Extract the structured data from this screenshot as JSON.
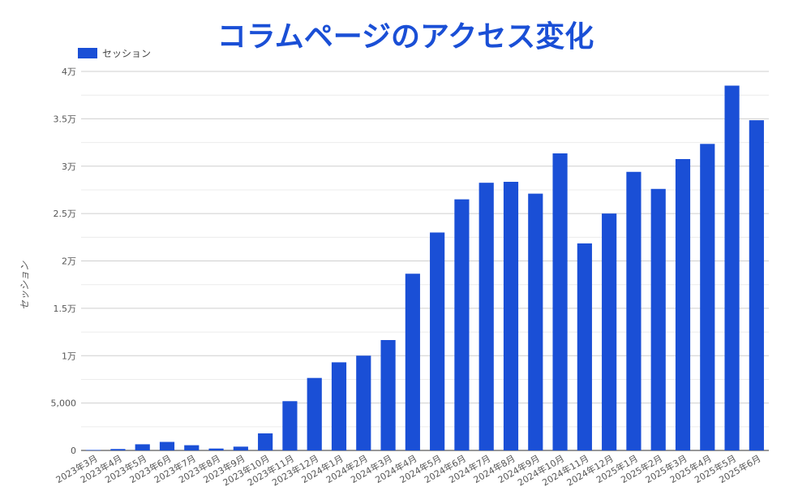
{
  "chart_data": {
    "type": "bar",
    "title": "コラムページのアクセス変化",
    "ylabel": "セッション",
    "xlabel": "",
    "legend": "top-left",
    "grid": true,
    "color": "#1a4fd6",
    "ylim": [
      0,
      40000
    ],
    "y_ticks": [
      0,
      5000,
      10000,
      15000,
      20000,
      25000,
      30000,
      35000,
      40000
    ],
    "y_tick_labels": [
      "0",
      "5,000",
      "1万",
      "1.5万",
      "2万",
      "2.5万",
      "3万",
      "3.5万",
      "4万"
    ],
    "categories": [
      "2023年3月",
      "2023年4月",
      "2023年5月",
      "2023年6月",
      "2023年7月",
      "2023年8月",
      "2023年9月",
      "2023年10月",
      "2023年11月",
      "2023年12月",
      "2024年1月",
      "2024年2月",
      "2024年3月",
      "2024年4月",
      "2024年5月",
      "2024年6月",
      "2024年7月",
      "2024年8月",
      "2024年9月",
      "2024年10月",
      "2024年11月",
      "2024年12月",
      "2025年1月",
      "2025年2月",
      "2025年3月",
      "2025年4月",
      "2025年5月",
      "2025年6月"
    ],
    "series": [
      {
        "name": "セッション",
        "values": [
          50,
          150,
          650,
          900,
          550,
          200,
          400,
          1800,
          5200,
          7650,
          9300,
          10000,
          11650,
          18650,
          23000,
          26500,
          28250,
          28350,
          27100,
          31350,
          21850,
          25000,
          29400,
          27600,
          30750,
          32350,
          38500,
          34850
        ]
      }
    ]
  }
}
